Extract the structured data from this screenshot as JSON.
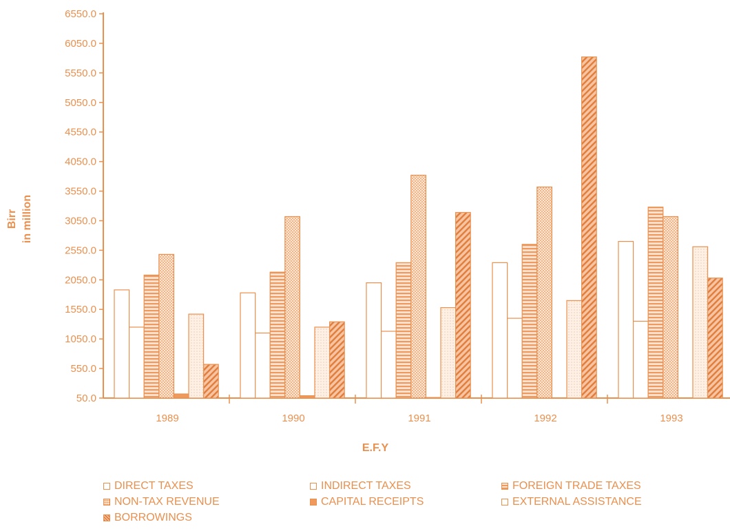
{
  "chart_data": {
    "type": "bar",
    "title": "",
    "xlabel": "E.F.Y",
    "ylabel_line1": "Birr",
    "ylabel_line2": "in million",
    "categories": [
      "1989",
      "1990",
      "1991",
      "1992",
      "1993"
    ],
    "y_ticks": [
      "50.0",
      "550.0",
      "1050.0",
      "1550.0",
      "2050.0",
      "2550.0",
      "3050.0",
      "3550.0",
      "4050.0",
      "4550.0",
      "5050.0",
      "5550.0",
      "6050.0",
      "6550.0"
    ],
    "ylim": [
      50,
      6550
    ],
    "grid": false,
    "legend_position": "bottom",
    "series": [
      {
        "name": "DIRECT TAXES",
        "pattern": "white",
        "values": [
          1880,
          1830,
          2000,
          2340,
          2700
        ]
      },
      {
        "name": "INDIRECT TAXES",
        "pattern": "white",
        "values": [
          1250,
          1150,
          1180,
          1400,
          1350
        ]
      },
      {
        "name": "FOREIGN TRADE TAXES",
        "pattern": "hstripe",
        "values": [
          2130,
          2180,
          2340,
          2650,
          3280
        ]
      },
      {
        "name": "NON-TAX REVENUE",
        "pattern": "dots",
        "values": [
          2480,
          3120,
          3820,
          3620,
          3120
        ]
      },
      {
        "name": "CAPITAL RECEIPTS",
        "pattern": "solid",
        "values": [
          120,
          90,
          60,
          40,
          50
        ]
      },
      {
        "name": "EXTERNAL ASSISTANCE",
        "pattern": "dots-light",
        "values": [
          1470,
          1250,
          1580,
          1700,
          2610
        ]
      },
      {
        "name": "BORROWINGS",
        "pattern": "diag",
        "values": [
          620,
          1340,
          3190,
          5820,
          2080
        ]
      }
    ]
  },
  "colors": {
    "accent": "#e9904f",
    "bar_fill_light": "#fbe4d3",
    "bar_fill_solid": "#ee9a5e"
  }
}
